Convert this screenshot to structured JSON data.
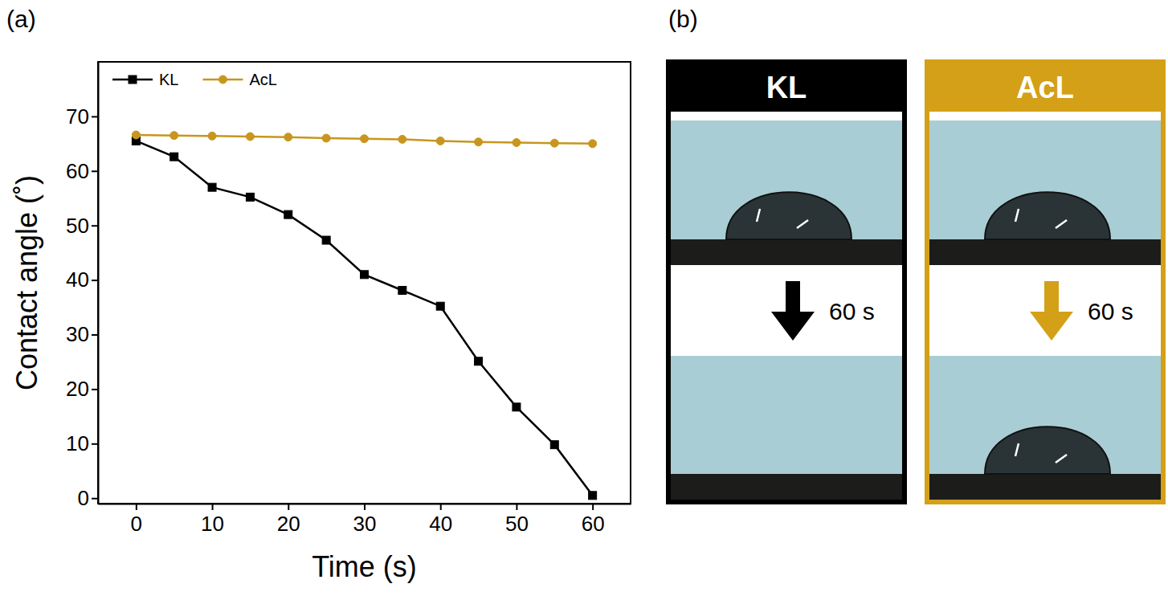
{
  "chart_data": {
    "type": "line",
    "x_label": "Time (s)",
    "y_label": "Contact angle (˚)",
    "x": [
      0,
      5,
      10,
      15,
      20,
      25,
      30,
      35,
      40,
      45,
      50,
      55,
      60
    ],
    "series": [
      {
        "name": "KL",
        "color": "#000000",
        "marker": "square",
        "line_style": "solid",
        "values": [
          65.5,
          62.6,
          57.0,
          55.2,
          52.0,
          47.3,
          41.0,
          38.1,
          35.2,
          25.1,
          16.7,
          9.8,
          0.5
        ]
      },
      {
        "name": "AcL",
        "color": "#c8961e",
        "marker": "circle",
        "line_style": "solid",
        "values": [
          66.6,
          66.5,
          66.4,
          66.3,
          66.2,
          66.0,
          65.9,
          65.8,
          65.5,
          65.3,
          65.2,
          65.1,
          65.0
        ]
      }
    ],
    "xlim": [
      -5,
      65
    ],
    "xticks": [
      0,
      10,
      20,
      30,
      40,
      50,
      60
    ],
    "ylim": [
      -1,
      80
    ],
    "yticks": [
      0,
      10,
      20,
      30,
      40,
      50,
      60,
      70
    ],
    "grid": false,
    "legend": "upper left"
  },
  "panel_labels": [
    "(a)",
    "(b)"
  ],
  "photos": [
    {
      "label": "KL",
      "color": "#000000",
      "arrow_label": "60 s",
      "droplet_after": false
    },
    {
      "label": "AcL",
      "color": "#d4a017",
      "arrow_label": "60 s",
      "droplet_after": true
    }
  ]
}
